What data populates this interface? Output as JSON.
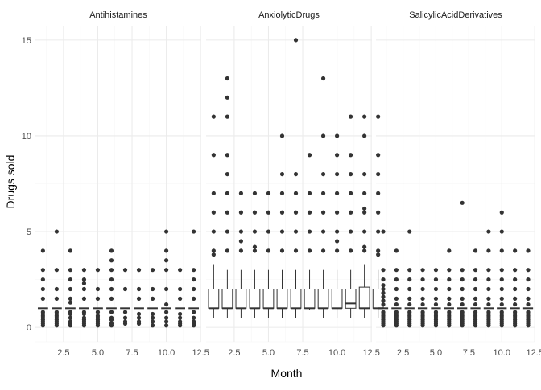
{
  "chart_data": {
    "type": "boxplot",
    "facet": "faceted by drug class",
    "xlabel": "Month",
    "ylabel": "Drugs sold",
    "xlim": [
      0.45,
      12.55
    ],
    "ylim": [
      -0.75,
      15.75
    ],
    "x_ticks": [
      "2.5",
      "5.0",
      "7.5",
      "10.0",
      "12.5"
    ],
    "x_tick_values": [
      2.5,
      5.0,
      7.5,
      10.0,
      12.5
    ],
    "y_ticks": [
      "0",
      "5",
      "10",
      "15"
    ],
    "y_tick_values": [
      0,
      5,
      10,
      15
    ],
    "grid": true,
    "colors": {
      "box_line": "#333333",
      "point": "#333333",
      "grid_major": "#ebebeb",
      "grid_minor": "#f5f5f5"
    },
    "panels": [
      {
        "name": "Antihistamines",
        "boxes": [
          {
            "month": 1,
            "q1": 1,
            "median": 1,
            "q3": 1,
            "lower": 1,
            "upper": 1,
            "outliers": [
              0.1,
              0.2,
              0.3,
              0.4,
              0.5,
              0.6,
              0.7,
              0.8,
              1.5,
              2,
              2.5,
              3,
              4
            ]
          },
          {
            "month": 2,
            "q1": 1,
            "median": 1,
            "q3": 1,
            "lower": 1,
            "upper": 1,
            "outliers": [
              0.1,
              0.2,
              0.3,
              0.4,
              0.5,
              0.6,
              0.7,
              0.8,
              1.5,
              2,
              3,
              5
            ]
          },
          {
            "month": 3,
            "q1": 1,
            "median": 1,
            "q3": 1,
            "lower": 1,
            "upper": 1,
            "outliers": [
              0.1,
              0.2,
              0.3,
              0.5,
              0.7,
              0.8,
              1.3,
              1.5,
              2,
              2.5,
              3,
              4
            ]
          },
          {
            "month": 4,
            "q1": 1,
            "median": 1,
            "q3": 1,
            "lower": 1,
            "upper": 1,
            "outliers": [
              0.1,
              0.2,
              0.3,
              0.4,
              0.5,
              0.7,
              0.8,
              1.5,
              2,
              2.3,
              2.5,
              3
            ]
          },
          {
            "month": 5,
            "q1": 1,
            "median": 1,
            "q3": 1,
            "lower": 1,
            "upper": 1,
            "outliers": [
              0.1,
              0.2,
              0.3,
              0.4,
              0.5,
              0.6,
              0.8,
              1.5,
              2,
              3
            ]
          },
          {
            "month": 6,
            "q1": 1,
            "median": 1,
            "q3": 1,
            "lower": 1,
            "upper": 1,
            "outliers": [
              0.1,
              0.2,
              0.4,
              0.5,
              0.8,
              1.5,
              2,
              2.5,
              3,
              3.5,
              4
            ]
          },
          {
            "month": 7,
            "q1": 1,
            "median": 1,
            "q3": 1,
            "lower": 1,
            "upper": 1,
            "outliers": [
              0.2,
              0.3,
              0.5,
              0.8,
              2,
              3
            ]
          },
          {
            "month": 8,
            "q1": 1,
            "median": 1,
            "q3": 1,
            "lower": 1,
            "upper": 1,
            "outliers": [
              0.2,
              0.3,
              0.5,
              0.7,
              1.5,
              2,
              3
            ]
          },
          {
            "month": 9,
            "q1": 1,
            "median": 1,
            "q3": 1,
            "lower": 1,
            "upper": 1,
            "outliers": [
              0.1,
              0.3,
              0.5,
              0.7,
              1.5,
              2,
              3
            ]
          },
          {
            "month": 10,
            "q1": 1,
            "median": 1,
            "q3": 1,
            "lower": 1,
            "upper": 1,
            "outliers": [
              0.1,
              0.3,
              0.5,
              0.8,
              1.2,
              2,
              3,
              3.5,
              4,
              5
            ]
          },
          {
            "month": 11,
            "q1": 1,
            "median": 1,
            "q3": 1,
            "lower": 1,
            "upper": 1,
            "outliers": [
              0.1,
              0.2,
              0.3,
              0.5,
              0.7,
              1.5,
              2,
              3
            ]
          },
          {
            "month": 12,
            "q1": 1,
            "median": 1,
            "q3": 1,
            "lower": 1,
            "upper": 1,
            "outliers": [
              0.1,
              0.2,
              0.3,
              0.5,
              0.8,
              1.5,
              2,
              2.5,
              3,
              5
            ]
          }
        ]
      },
      {
        "name": "AnxiolyticDrugs",
        "boxes": [
          {
            "month": 1,
            "q1": 1,
            "median": 1,
            "q3": 2,
            "lower": 0.5,
            "upper": 3.3,
            "outliers": [
              3.8,
              4,
              5,
              6,
              7,
              9,
              11
            ]
          },
          {
            "month": 2,
            "q1": 1,
            "median": 1,
            "q3": 2,
            "lower": 0.5,
            "upper": 3.0,
            "outliers": [
              4,
              5,
              6,
              7,
              8,
              9,
              11,
              12,
              13
            ]
          },
          {
            "month": 3,
            "q1": 1,
            "median": 1,
            "q3": 2,
            "lower": 0.5,
            "upper": 3.0,
            "outliers": [
              4,
              4.5,
              5,
              6,
              7
            ]
          },
          {
            "month": 4,
            "q1": 1,
            "median": 1,
            "q3": 2,
            "lower": 0.5,
            "upper": 3.0,
            "outliers": [
              4,
              4.2,
              5,
              6,
              7
            ]
          },
          {
            "month": 5,
            "q1": 1,
            "median": 1,
            "q3": 2,
            "lower": 0.5,
            "upper": 3.0,
            "outliers": [
              4,
              5,
              6,
              7
            ]
          },
          {
            "month": 6,
            "q1": 1,
            "median": 1,
            "q3": 2,
            "lower": 0.5,
            "upper": 3.0,
            "outliers": [
              4,
              5,
              6,
              7,
              8,
              10
            ]
          },
          {
            "month": 7,
            "q1": 1,
            "median": 1,
            "q3": 2,
            "lower": 0.5,
            "upper": 3.0,
            "outliers": [
              4,
              5,
              6,
              7,
              8,
              15
            ]
          },
          {
            "month": 8,
            "q1": 1,
            "median": 1,
            "q3": 2,
            "lower": 0.9,
            "upper": 3.0,
            "outliers": [
              4,
              5,
              6,
              7,
              9
            ]
          },
          {
            "month": 9,
            "q1": 1,
            "median": 1,
            "q3": 2,
            "lower": 0.5,
            "upper": 3.0,
            "outliers": [
              4,
              5,
              6,
              7,
              8,
              10,
              13
            ]
          },
          {
            "month": 10,
            "q1": 1,
            "median": 1,
            "q3": 2,
            "lower": 0.5,
            "upper": 3.0,
            "outliers": [
              4,
              4.5,
              5,
              6,
              7,
              8,
              9,
              10
            ]
          },
          {
            "month": 11,
            "q1": 1,
            "median": 1.25,
            "q3": 2,
            "lower": 0.5,
            "upper": 3.0,
            "outliers": [
              4,
              5,
              6,
              7,
              8,
              9,
              11
            ]
          },
          {
            "month": 12,
            "q1": 1,
            "median": 1,
            "q3": 2.1,
            "lower": 0.5,
            "upper": 3.3,
            "outliers": [
              4,
              4.2,
              5,
              6,
              6.2,
              7,
              8,
              10,
              11
            ]
          },
          {
            "month": 13,
            "q1": 1,
            "median": 1,
            "q3": 2,
            "lower": 0.5,
            "upper": 3.0,
            "outliers": [
              3.8,
              4,
              5,
              6,
              7,
              8,
              9,
              11
            ]
          }
        ]
      },
      {
        "name": "SalicylicAcidDerivatives",
        "boxes": [
          {
            "month": 1,
            "q1": 1,
            "median": 1,
            "q3": 1,
            "lower": 1,
            "upper": 1,
            "outliers": [
              0.1,
              0.2,
              0.3,
              0.4,
              0.5,
              0.6,
              0.7,
              0.8,
              1.2,
              1.4,
              1.6,
              1.8,
              2,
              2.2,
              2.5,
              3,
              5
            ]
          },
          {
            "month": 2,
            "q1": 1,
            "median": 1,
            "q3": 1,
            "lower": 1,
            "upper": 1,
            "outliers": [
              0.1,
              0.2,
              0.3,
              0.4,
              0.5,
              0.6,
              0.7,
              0.8,
              1.2,
              1.5,
              2,
              2.5,
              3,
              4
            ]
          },
          {
            "month": 3,
            "q1": 1,
            "median": 1,
            "q3": 1,
            "lower": 1,
            "upper": 1,
            "outliers": [
              0.1,
              0.2,
              0.3,
              0.4,
              0.5,
              0.6,
              0.7,
              0.8,
              1.2,
              1.5,
              2,
              2.5,
              3,
              5
            ]
          },
          {
            "month": 4,
            "q1": 1,
            "median": 1,
            "q3": 1,
            "lower": 1,
            "upper": 1,
            "outliers": [
              0.1,
              0.2,
              0.3,
              0.4,
              0.5,
              0.6,
              0.7,
              0.8,
              1.2,
              1.5,
              2,
              2.5,
              3
            ]
          },
          {
            "month": 5,
            "q1": 1,
            "median": 1,
            "q3": 1,
            "lower": 1,
            "upper": 1,
            "outliers": [
              0.1,
              0.2,
              0.3,
              0.4,
              0.5,
              0.6,
              0.7,
              0.8,
              1.2,
              1.5,
              2,
              2.5,
              3
            ]
          },
          {
            "month": 6,
            "q1": 1,
            "median": 1,
            "q3": 1,
            "lower": 1,
            "upper": 1,
            "outliers": [
              0.1,
              0.2,
              0.3,
              0.4,
              0.5,
              0.6,
              0.7,
              0.8,
              1.2,
              1.5,
              2,
              2.5,
              3,
              4
            ]
          },
          {
            "month": 7,
            "q1": 1,
            "median": 1,
            "q3": 1,
            "lower": 1,
            "upper": 1,
            "outliers": [
              0.1,
              0.2,
              0.3,
              0.4,
              0.5,
              0.6,
              0.7,
              0.8,
              1.2,
              1.5,
              2,
              2.5,
              3,
              6.5
            ]
          },
          {
            "month": 8,
            "q1": 1,
            "median": 1,
            "q3": 1,
            "lower": 1,
            "upper": 1,
            "outliers": [
              0.1,
              0.2,
              0.3,
              0.4,
              0.5,
              0.6,
              0.7,
              0.8,
              1.2,
              1.5,
              2,
              2.5,
              3,
              4
            ]
          },
          {
            "month": 9,
            "q1": 1,
            "median": 1,
            "q3": 1,
            "lower": 1,
            "upper": 1,
            "outliers": [
              0.1,
              0.2,
              0.3,
              0.4,
              0.5,
              0.6,
              0.7,
              0.8,
              1.2,
              1.5,
              2,
              2.5,
              3,
              4,
              5
            ]
          },
          {
            "month": 10,
            "q1": 1,
            "median": 1,
            "q3": 1,
            "lower": 1,
            "upper": 1,
            "outliers": [
              0.1,
              0.2,
              0.3,
              0.4,
              0.5,
              0.6,
              0.7,
              0.8,
              1.2,
              1.5,
              2,
              2.5,
              3,
              4,
              5,
              6
            ]
          },
          {
            "month": 11,
            "q1": 1,
            "median": 1,
            "q3": 1,
            "lower": 1,
            "upper": 1,
            "outliers": [
              0.1,
              0.2,
              0.3,
              0.4,
              0.5,
              0.6,
              0.7,
              0.8,
              1.2,
              1.5,
              2,
              2.5,
              3,
              4
            ]
          },
          {
            "month": 12,
            "q1": 1,
            "median": 1,
            "q3": 1,
            "lower": 1,
            "upper": 1,
            "outliers": [
              0.1,
              0.2,
              0.3,
              0.4,
              0.5,
              0.6,
              0.7,
              0.8,
              1.2,
              1.5,
              2,
              2.5,
              3,
              4
            ]
          }
        ]
      }
    ]
  }
}
